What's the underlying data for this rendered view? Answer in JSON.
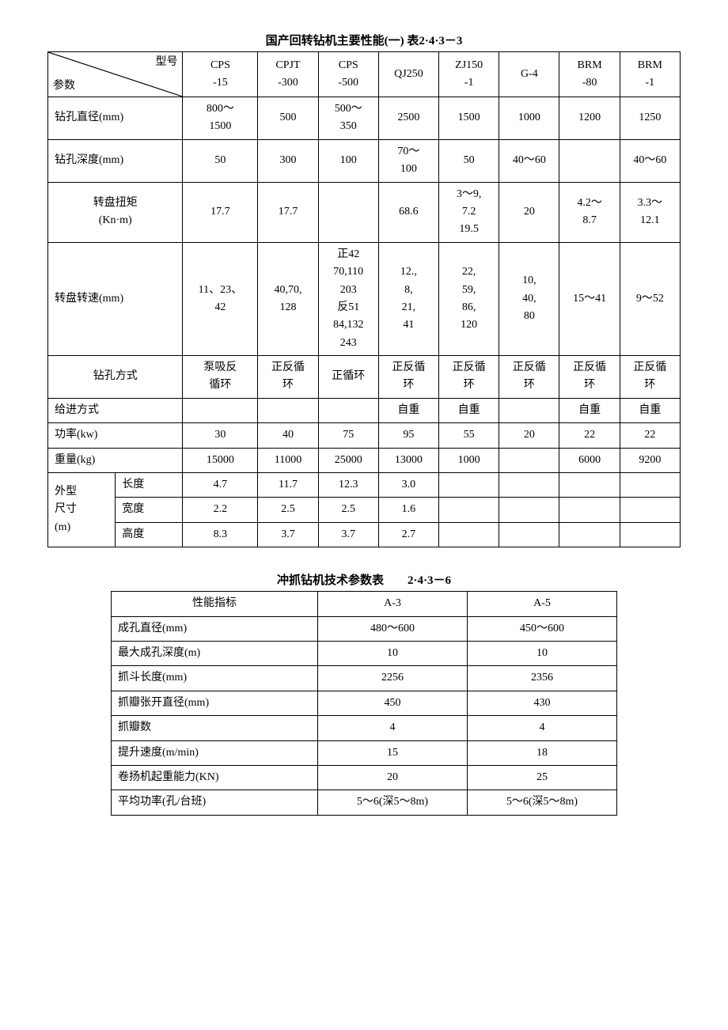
{
  "table1": {
    "title": "国产回转钻机主要性能(一) 表2·4·3－3",
    "diag_top": "型号",
    "diag_bottom": "参数",
    "model_cols": [
      "CPS\n-15",
      "CPJT\n-300",
      "CPS\n-500",
      "QJ250",
      "ZJ150\n-1",
      "G-4",
      "BRM\n-80",
      "BRM\n-1"
    ],
    "rows_simple": [
      {
        "label": "钻孔直径(mm)",
        "vals": [
          "800～\n1500",
          "500",
          "500～\n350",
          "2500",
          "1500",
          "1000",
          "1200",
          "1250"
        ]
      },
      {
        "label": "钻孔深度(mm)",
        "vals": [
          "50",
          "300",
          "100",
          "70～\n100",
          "50",
          "40～60",
          "",
          "40～60"
        ]
      },
      {
        "label": "转盘扭矩\n(Kn·m)",
        "vals": [
          "17.7",
          "17.7",
          "",
          "68.6",
          "3～9,\n7.2\n19.5",
          "20",
          "4.2～\n8.7",
          "3.3～\n12.1"
        ]
      },
      {
        "label": "转盘转速(mm)",
        "vals": [
          "11、23、\n42",
          "40,70,\n128",
          "正42\n70,110\n203\n反51\n84,132\n243",
          "12.,\n8,\n21,\n41",
          "22,\n59,\n86,\n120",
          "10,\n40,\n80",
          "15～41",
          "9～52"
        ]
      },
      {
        "label": "钻孔方式",
        "vals": [
          "泵吸反\n循环",
          "正反循\n环",
          "正循环",
          "正反循\n环",
          "正反循\n环",
          "正反循\n环",
          "正反循\n环",
          "正反循\n环"
        ]
      },
      {
        "label": "给进方式",
        "vals": [
          "",
          "",
          "",
          "自重",
          "自重",
          "",
          "自重",
          "自重"
        ]
      },
      {
        "label": "功率(kw)",
        "vals": [
          "30",
          "40",
          "75",
          "95",
          "55",
          "20",
          "22",
          "22"
        ]
      },
      {
        "label": "重量(kg)",
        "vals": [
          "15000",
          "11000",
          "25000",
          "13000",
          "1000",
          "",
          "6000",
          "9200"
        ]
      }
    ],
    "dim_group_label": "外型\n尺寸\n(m)",
    "dim_rows": [
      {
        "label": "长度",
        "vals": [
          "4.7",
          "11.7",
          "12.3",
          "3.0",
          "",
          "",
          "",
          ""
        ]
      },
      {
        "label": "宽度",
        "vals": [
          "2.2",
          "2.5",
          "2.5",
          "1.6",
          "",
          "",
          "",
          ""
        ]
      },
      {
        "label": "高度",
        "vals": [
          "8.3",
          "3.7",
          "3.7",
          "2.7",
          "",
          "",
          "",
          ""
        ]
      }
    ]
  },
  "table2": {
    "title": "冲抓钻机技术参数表　　2·4·3－6",
    "header": [
      "性能指标",
      "A-3",
      "A-5"
    ],
    "rows": [
      [
        "成孔直径(mm)",
        "480～600",
        "450～600"
      ],
      [
        "最大成孔深度(m)",
        "10",
        "10"
      ],
      [
        "抓斗长度(mm)",
        "2256",
        "2356"
      ],
      [
        "抓瓣张开直径(mm)",
        "450",
        "430"
      ],
      [
        "抓瓣数",
        "4",
        "4"
      ],
      [
        "提升速度(m/min)",
        "15",
        "18"
      ],
      [
        "卷扬机起重能力(KN)",
        "20",
        "25"
      ],
      [
        "平均功率(孔/台班)",
        "5～6(深5～8m)",
        "5～6(深5～8m)"
      ]
    ]
  }
}
